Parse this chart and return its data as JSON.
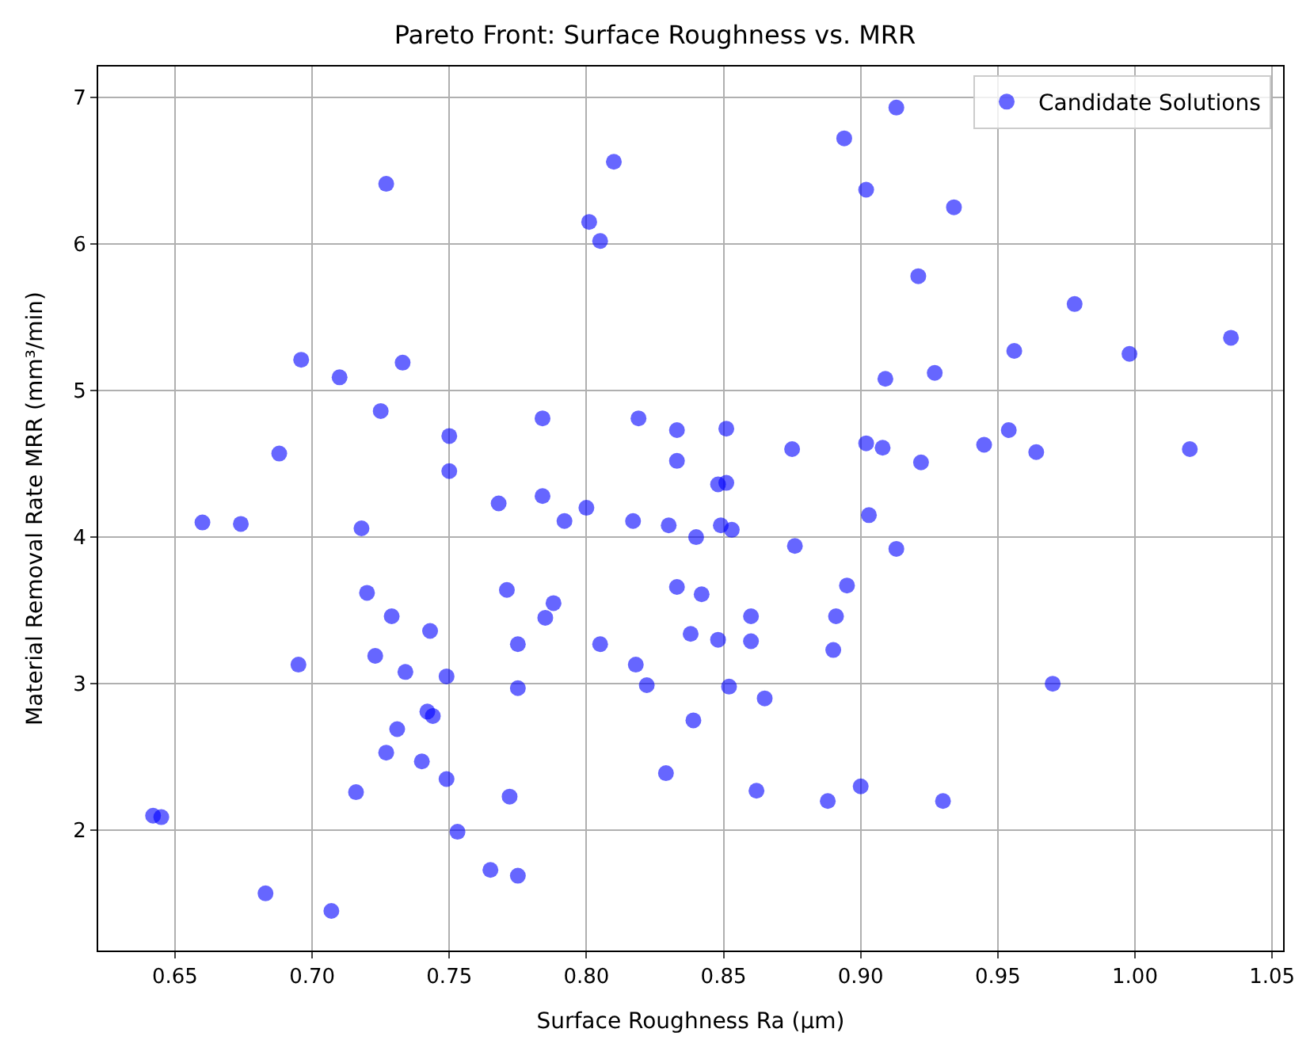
{
  "chart_data": {
    "type": "scatter",
    "title": "Pareto Front: Surface Roughness vs. MRR",
    "xlabel": "Surface Roughness Ra (µm)",
    "ylabel": "Material Removal Rate MRR (mm³/min)",
    "xlim": [
      0.622,
      1.054
    ],
    "ylim": [
      1.18,
      7.21
    ],
    "xticks": [
      {
        "value": 0.65,
        "label": "0.65"
      },
      {
        "value": 0.7,
        "label": "0.70"
      },
      {
        "value": 0.75,
        "label": "0.75"
      },
      {
        "value": 0.8,
        "label": "0.80"
      },
      {
        "value": 0.85,
        "label": "0.85"
      },
      {
        "value": 0.9,
        "label": "0.90"
      },
      {
        "value": 0.95,
        "label": "0.95"
      },
      {
        "value": 1.0,
        "label": "1.00"
      },
      {
        "value": 1.05,
        "label": "1.05"
      }
    ],
    "yticks": [
      2,
      3,
      4,
      5,
      6,
      7
    ],
    "grid": true,
    "legend": "top right",
    "marker": "circle",
    "series": [
      {
        "name": "Candidate Solutions",
        "color": "#0000ff",
        "x": [
          0.642,
          0.645,
          0.66,
          0.674,
          0.683,
          0.688,
          0.695,
          0.696,
          0.707,
          0.71,
          0.716,
          0.718,
          0.72,
          0.723,
          0.725,
          0.727,
          0.727,
          0.729,
          0.731,
          0.733,
          0.734,
          0.74,
          0.742,
          0.743,
          0.744,
          0.749,
          0.749,
          0.75,
          0.75,
          0.753,
          0.765,
          0.768,
          0.771,
          0.772,
          0.775,
          0.775,
          0.775,
          0.784,
          0.784,
          0.785,
          0.788,
          0.792,
          0.8,
          0.801,
          0.805,
          0.805,
          0.81,
          0.817,
          0.818,
          0.819,
          0.822,
          0.829,
          0.83,
          0.833,
          0.833,
          0.833,
          0.838,
          0.839,
          0.84,
          0.842,
          0.848,
          0.848,
          0.849,
          0.851,
          0.851,
          0.852,
          0.853,
          0.86,
          0.86,
          0.862,
          0.865,
          0.875,
          0.876,
          0.888,
          0.89,
          0.891,
          0.894,
          0.895,
          0.9,
          0.902,
          0.902,
          0.903,
          0.908,
          0.909,
          0.913,
          0.913,
          0.921,
          0.922,
          0.927,
          0.93,
          0.934,
          0.945,
          0.954,
          0.956,
          0.964,
          0.97,
          0.978,
          0.998,
          1.02,
          1.035
        ],
        "values": [
          2.1,
          2.09,
          4.1,
          4.09,
          1.57,
          4.57,
          3.13,
          5.21,
          1.45,
          5.09,
          2.26,
          4.06,
          3.62,
          3.19,
          4.86,
          2.53,
          6.41,
          3.46,
          2.69,
          5.19,
          3.08,
          2.47,
          2.81,
          3.36,
          2.78,
          3.05,
          2.35,
          4.69,
          4.45,
          1.99,
          1.73,
          4.23,
          3.64,
          2.23,
          3.27,
          2.97,
          1.69,
          4.81,
          4.28,
          3.45,
          3.55,
          4.11,
          4.2,
          6.15,
          6.02,
          3.27,
          6.56,
          4.11,
          3.13,
          4.81,
          2.99,
          2.39,
          4.08,
          4.73,
          4.52,
          3.66,
          3.34,
          2.75,
          4.0,
          3.61,
          4.36,
          3.3,
          4.08,
          4.37,
          4.74,
          2.98,
          4.05,
          3.29,
          3.46,
          2.27,
          2.9,
          4.6,
          3.94,
          2.2,
          3.23,
          3.46,
          6.72,
          3.67,
          2.3,
          6.37,
          4.64,
          4.15,
          4.61,
          5.08,
          6.93,
          3.92,
          5.78,
          4.51,
          5.12,
          2.2,
          6.25,
          4.63,
          4.73,
          5.27,
          4.58,
          3.0,
          5.59,
          5.25,
          4.6,
          5.36
        ]
      }
    ]
  }
}
